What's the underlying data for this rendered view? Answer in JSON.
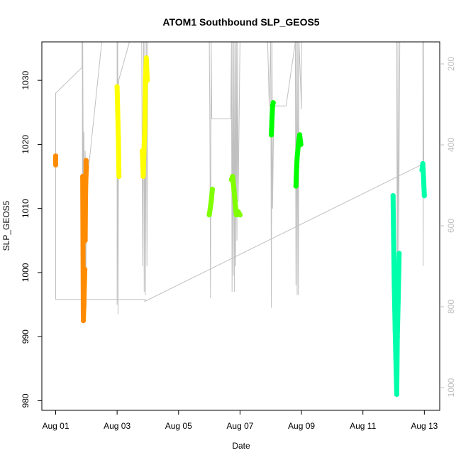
{
  "chart_data": {
    "type": "line",
    "title": "ATOM1 Southbound SLP_GEOS5",
    "xlabel": "Date",
    "ylabel": "SLP_GEOS5",
    "x_unit": "days since Aug 01",
    "xlim": [
      -0.45,
      12.5
    ],
    "ylim": [
      978.5,
      1036
    ],
    "x_ticks": [
      {
        "value": 0,
        "label": "Aug 01"
      },
      {
        "value": 2,
        "label": "Aug 03"
      },
      {
        "value": 4,
        "label": "Aug 05"
      },
      {
        "value": 6,
        "label": "Aug 07"
      },
      {
        "value": 8,
        "label": "Aug 09"
      },
      {
        "value": 10,
        "label": "Aug 11"
      },
      {
        "value": 12,
        "label": "Aug 13"
      }
    ],
    "y_ticks": [
      {
        "value": 980,
        "label": "980"
      },
      {
        "value": 990,
        "label": "990"
      },
      {
        "value": 1000,
        "label": "1000"
      },
      {
        "value": 1010,
        "label": "1010"
      },
      {
        "value": 1020,
        "label": "1020"
      },
      {
        "value": 1030,
        "label": "1030"
      }
    ],
    "y2_axis": {
      "color": "#bebebe",
      "inverted": true,
      "ticks": [
        {
          "value": 200,
          "label": "200"
        },
        {
          "value": 400,
          "label": "400"
        },
        {
          "value": 600,
          "label": "600"
        },
        {
          "value": 800,
          "label": "800"
        },
        {
          "value": 1000,
          "label": "1000"
        }
      ]
    },
    "background_line": {
      "color": "#c0c0c0",
      "points": [
        [
          0.0,
          1008
        ],
        [
          0.0,
          1028
        ],
        [
          0.86,
          1032
        ],
        [
          0.86,
          1036
        ],
        [
          0.87,
          1036
        ],
        [
          0.87,
          995
        ],
        [
          0.88,
          1036
        ],
        [
          0.9,
          1014
        ],
        [
          0.92,
          1022
        ],
        [
          0.94,
          1003
        ],
        [
          0.96,
          1019
        ],
        [
          0.98,
          996
        ],
        [
          1.0,
          1013
        ],
        [
          1.5,
          1036
        ],
        [
          2.0,
          1036
        ],
        [
          2.0,
          995
        ],
        [
          2.02,
          1036
        ],
        [
          2.03,
          993.5
        ],
        [
          2.05,
          1030
        ],
        [
          2.4,
          1036
        ],
        [
          3.2,
          1036
        ],
        [
          3.3,
          1036
        ],
        [
          3.45,
          1036
        ],
        [
          3.5,
          1036
        ],
        [
          2.8,
          1036
        ],
        [
          2.83,
          1001
        ],
        [
          2.86,
          1036
        ],
        [
          2.88,
          997
        ],
        [
          2.9,
          1036
        ],
        [
          2.92,
          996.5
        ],
        [
          2.95,
          1036
        ],
        [
          2.97,
          1001
        ],
        [
          3.0,
          1036
        ],
        [
          3.05,
          1036
        ],
        [
          3.6,
          1036
        ],
        [
          4.5,
          1036
        ],
        [
          5.0,
          1036
        ],
        [
          5.02,
          1022
        ],
        [
          5.04,
          996
        ],
        [
          5.06,
          1036
        ],
        [
          5.08,
          1024
        ],
        [
          5.7,
          1024
        ],
        [
          5.72,
          1036
        ],
        [
          5.74,
          997
        ],
        [
          5.76,
          1036
        ],
        [
          5.78,
          999.5
        ],
        [
          5.8,
          1036
        ],
        [
          5.82,
          997
        ],
        [
          5.84,
          1036
        ],
        [
          5.86,
          1001
        ],
        [
          5.88,
          1036
        ],
        [
          5.9,
          1005
        ],
        [
          5.92,
          1036
        ],
        [
          5.94,
          1011
        ],
        [
          6.0,
          1036
        ],
        [
          6.9,
          1036
        ],
        [
          6.95,
          1026
        ],
        [
          7.0,
          1036
        ],
        [
          7.02,
          994.5
        ],
        [
          7.04,
          1036
        ],
        [
          7.06,
          1010
        ],
        [
          7.1,
          1026
        ],
        [
          7.5,
          1026
        ],
        [
          7.8,
          1036
        ],
        [
          7.82,
          998
        ],
        [
          7.84,
          1036
        ],
        [
          7.86,
          996.5
        ],
        [
          7.88,
          1036
        ],
        [
          7.9,
          996.5
        ],
        [
          7.92,
          1036
        ],
        [
          8.0,
          1025.5
        ],
        [
          8.0,
          1036
        ],
        [
          11.0,
          1036
        ],
        [
          11.1,
          1036
        ],
        [
          11.12,
          988
        ],
        [
          11.14,
          1036
        ],
        [
          11.16,
          1003
        ],
        [
          11.2,
          1036
        ],
        [
          11.35,
          1036
        ],
        [
          11.95,
          1036
        ],
        [
          11.96,
          1001
        ],
        [
          11.97,
          1036
        ],
        [
          11.98,
          1017
        ],
        [
          2.9,
          995.5
        ],
        [
          2.92,
          995.8
        ],
        [
          0.0,
          995.8
        ],
        [
          0.0,
          1008
        ]
      ]
    },
    "series": [
      {
        "color": "#ff8c00",
        "segments": [
          [
            [
              0.0,
              1018.2
            ],
            [
              0.0,
              1016.8
            ]
          ],
          [
            [
              0.88,
              1015.0
            ],
            [
              0.9,
              992.5
            ],
            [
              0.92,
              995.0
            ],
            [
              0.95,
              1000.5
            ]
          ],
          [
            [
              0.96,
              1005.0
            ],
            [
              0.97,
              1011.0
            ],
            [
              0.99,
              1017.5
            ]
          ],
          [
            [
              0.98,
              1014.0
            ],
            [
              1.0,
              1016.5
            ]
          ]
        ]
      },
      {
        "color": "#ffff00",
        "segments": [
          [
            [
              2.0,
              1029.0
            ],
            [
              2.02,
              1025.0
            ],
            [
              2.04,
              1021.0
            ],
            [
              2.06,
              1015.0
            ]
          ],
          [
            [
              2.82,
              1019.0
            ],
            [
              2.85,
              1015.0
            ],
            [
              2.88,
              1020.0
            ],
            [
              2.9,
              1022.0
            ],
            [
              2.92,
              1030.0
            ],
            [
              2.95,
              1033.5
            ],
            [
              2.98,
              1030.0
            ]
          ]
        ]
      },
      {
        "color": "#7fff00",
        "segments": [
          [
            [
              5.0,
              1009.0
            ],
            [
              5.06,
              1011.0
            ],
            [
              5.1,
              1013.0
            ]
          ],
          [
            [
              5.72,
              1014.5
            ],
            [
              5.76,
              1015.0
            ],
            [
              5.8,
              1013.0
            ],
            [
              5.84,
              1011.0
            ],
            [
              5.88,
              1009.0
            ],
            [
              5.94,
              1009.5
            ],
            [
              6.0,
              1009.0
            ]
          ]
        ]
      },
      {
        "color": "#00ff00",
        "segments": [
          [
            [
              7.02,
              1021.5
            ],
            [
              7.04,
              1024.0
            ],
            [
              7.06,
              1026.0
            ],
            [
              7.08,
              1026.5
            ]
          ],
          [
            [
              7.82,
              1013.5
            ],
            [
              7.84,
              1016.0
            ],
            [
              7.86,
              1018.0
            ],
            [
              7.9,
              1020.0
            ],
            [
              7.94,
              1021.5
            ],
            [
              7.98,
              1020.0
            ]
          ]
        ]
      },
      {
        "color": "#00ffaa",
        "segments": [
          [
            [
              10.98,
              1012.0
            ],
            [
              11.0,
              1005.0
            ],
            [
              11.02,
              998.0
            ],
            [
              11.05,
              991.0
            ],
            [
              11.08,
              985.0
            ],
            [
              11.1,
              981.0
            ],
            [
              11.12,
              990.0
            ],
            [
              11.15,
              996.0
            ],
            [
              11.18,
              1003.0
            ]
          ],
          [
            [
              11.92,
              1016.0
            ],
            [
              11.95,
              1017.0
            ],
            [
              11.98,
              1014.0
            ],
            [
              12.0,
              1012.0
            ]
          ]
        ]
      }
    ]
  }
}
